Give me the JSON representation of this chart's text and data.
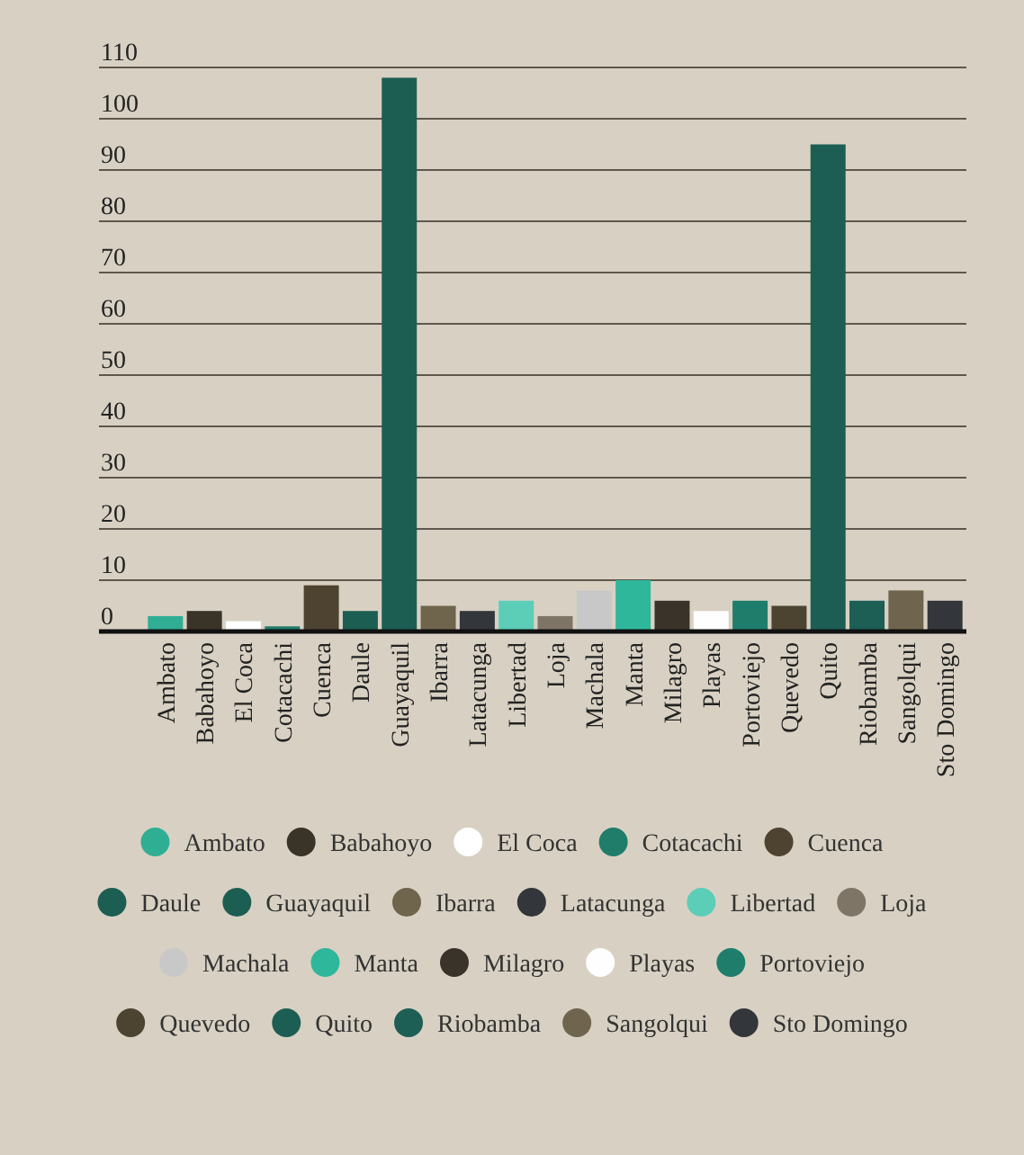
{
  "chart_data": {
    "type": "bar",
    "categories": [
      "Ambato",
      "Babahoyo",
      "El Coca",
      "Cotacachi",
      "Cuenca",
      "Daule",
      "Guayaquil",
      "Ibarra",
      "Latacunga",
      "Libertad",
      "Loja",
      "Machala",
      "Manta",
      "Milagro",
      "Playas",
      "Portoviejo",
      "Quevedo",
      "Quito",
      "Riobamba",
      "Sangolqui",
      "Sto Domingo"
    ],
    "series": [
      {
        "name": "Ambato",
        "color": "#2fae94",
        "values": [
          3,
          null,
          null,
          null,
          null,
          null,
          null,
          null,
          null,
          null,
          null,
          null,
          null,
          null,
          null,
          null,
          null,
          null,
          null,
          null,
          null
        ]
      },
      {
        "name": "Babahoyo",
        "color": "#3a3328",
        "values": [
          null,
          4,
          null,
          null,
          null,
          null,
          null,
          null,
          null,
          null,
          null,
          null,
          null,
          null,
          null,
          null,
          null,
          null,
          null,
          null,
          null
        ]
      },
      {
        "name": "El Coca",
        "color": "#ffffff",
        "values": [
          null,
          null,
          2,
          null,
          null,
          null,
          null,
          null,
          null,
          null,
          null,
          null,
          null,
          null,
          null,
          null,
          null,
          null,
          null,
          null,
          null
        ]
      },
      {
        "name": "Cotacachi",
        "color": "#1f7d6a",
        "values": [
          null,
          null,
          null,
          1,
          null,
          null,
          null,
          null,
          null,
          null,
          null,
          null,
          null,
          null,
          null,
          null,
          null,
          null,
          null,
          null,
          null
        ]
      },
      {
        "name": "Cuenca",
        "color": "#4d4330",
        "values": [
          null,
          null,
          null,
          null,
          9,
          null,
          null,
          null,
          null,
          null,
          null,
          null,
          null,
          null,
          null,
          null,
          null,
          null,
          null,
          null,
          null
        ]
      },
      {
        "name": "Daule",
        "color": "#1d5e52",
        "values": [
          null,
          null,
          null,
          null,
          null,
          4,
          null,
          null,
          null,
          null,
          null,
          null,
          null,
          null,
          null,
          null,
          null,
          null,
          null,
          null,
          null
        ]
      },
      {
        "name": "Guayaquil",
        "color": "#1d5e53",
        "values": [
          null,
          null,
          null,
          null,
          null,
          null,
          108,
          null,
          null,
          null,
          null,
          null,
          null,
          null,
          null,
          null,
          null,
          null,
          null,
          null,
          null
        ]
      },
      {
        "name": "Ibarra",
        "color": "#6f644c",
        "values": [
          null,
          null,
          null,
          null,
          null,
          null,
          null,
          5,
          null,
          null,
          null,
          null,
          null,
          null,
          null,
          null,
          null,
          null,
          null,
          null,
          null
        ]
      },
      {
        "name": "Latacunga",
        "color": "#33363a",
        "values": [
          null,
          null,
          null,
          null,
          null,
          null,
          null,
          null,
          4,
          null,
          null,
          null,
          null,
          null,
          null,
          null,
          null,
          null,
          null,
          null,
          null
        ]
      },
      {
        "name": "Libertad",
        "color": "#5ccdb7",
        "values": [
          null,
          null,
          null,
          null,
          null,
          null,
          null,
          null,
          null,
          6,
          null,
          null,
          null,
          null,
          null,
          null,
          null,
          null,
          null,
          null,
          null
        ]
      },
      {
        "name": "Loja",
        "color": "#7f7566",
        "values": [
          null,
          null,
          null,
          null,
          null,
          null,
          null,
          null,
          null,
          null,
          3,
          null,
          null,
          null,
          null,
          null,
          null,
          null,
          null,
          null,
          null
        ]
      },
      {
        "name": "Machala",
        "color": "#c8c8c8",
        "values": [
          null,
          null,
          null,
          null,
          null,
          null,
          null,
          null,
          null,
          null,
          null,
          8,
          null,
          null,
          null,
          null,
          null,
          null,
          null,
          null,
          null
        ]
      },
      {
        "name": "Manta",
        "color": "#2fb79b",
        "values": [
          null,
          null,
          null,
          null,
          null,
          null,
          null,
          null,
          null,
          null,
          null,
          null,
          10,
          null,
          null,
          null,
          null,
          null,
          null,
          null,
          null
        ]
      },
      {
        "name": "Milagro",
        "color": "#3a3329",
        "values": [
          null,
          null,
          null,
          null,
          null,
          null,
          null,
          null,
          null,
          null,
          null,
          null,
          null,
          6,
          null,
          null,
          null,
          null,
          null,
          null,
          null
        ]
      },
      {
        "name": "Playas",
        "color": "#fefefe",
        "values": [
          null,
          null,
          null,
          null,
          null,
          null,
          null,
          null,
          null,
          null,
          null,
          null,
          null,
          null,
          4,
          null,
          null,
          null,
          null,
          null,
          null
        ]
      },
      {
        "name": "Portoviejo",
        "color": "#1f7d6b",
        "values": [
          null,
          null,
          null,
          null,
          null,
          null,
          null,
          null,
          null,
          null,
          null,
          null,
          null,
          null,
          null,
          6,
          null,
          null,
          null,
          null,
          null
        ]
      },
      {
        "name": "Quevedo",
        "color": "#4d4331",
        "values": [
          null,
          null,
          null,
          null,
          null,
          null,
          null,
          null,
          null,
          null,
          null,
          null,
          null,
          null,
          null,
          null,
          5,
          null,
          null,
          null,
          null
        ]
      },
      {
        "name": "Quito",
        "color": "#1d5e54",
        "values": [
          null,
          null,
          null,
          null,
          null,
          null,
          null,
          null,
          null,
          null,
          null,
          null,
          null,
          null,
          null,
          null,
          null,
          95,
          null,
          null,
          null
        ]
      },
      {
        "name": "Riobamba",
        "color": "#1d5e55",
        "values": [
          null,
          null,
          null,
          null,
          null,
          null,
          null,
          null,
          null,
          null,
          null,
          null,
          null,
          null,
          null,
          null,
          null,
          null,
          6,
          null,
          null
        ]
      },
      {
        "name": "Sangolqui",
        "color": "#6f644d",
        "values": [
          null,
          null,
          null,
          null,
          null,
          null,
          null,
          null,
          null,
          null,
          null,
          null,
          null,
          null,
          null,
          null,
          null,
          null,
          null,
          8,
          null
        ]
      },
      {
        "name": "Sto Domingo",
        "color": "#33363b",
        "values": [
          null,
          null,
          null,
          null,
          null,
          null,
          null,
          null,
          null,
          null,
          null,
          null,
          null,
          null,
          null,
          null,
          null,
          null,
          null,
          null,
          6
        ]
      }
    ],
    "ylim": [
      0,
      110
    ],
    "yticks": [
      0,
      10,
      20,
      30,
      40,
      50,
      60,
      70,
      80,
      90,
      100,
      110
    ],
    "grid": "y",
    "legend": "bottom"
  }
}
